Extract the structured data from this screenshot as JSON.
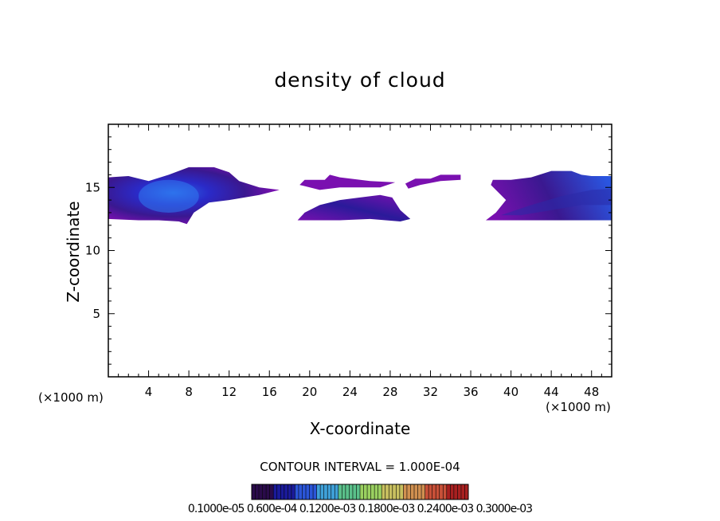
{
  "chart_data": {
    "type": "heatmap",
    "title": "density of cloud",
    "xlabel": "X-coordinate",
    "ylabel": "Z-coordinate",
    "x_unit_left": "(×1000 m)",
    "x_unit_right": "(×1000 m)",
    "xlim": [
      0,
      50
    ],
    "ylim": [
      0,
      20
    ],
    "x_ticks": [
      4,
      8,
      12,
      16,
      20,
      24,
      28,
      32,
      36,
      40,
      44,
      48
    ],
    "y_ticks": [
      5,
      10,
      15
    ],
    "contour_interval_text": "CONTOUR INTERVAL = 1.000E-04",
    "colorbar_labels_text": "0.1000e-05 0.600e-04 0.1200e-03 0.1800e-03 0.2400e-03 0.3000e-03",
    "colorbar_colors": [
      "#2a0b4a",
      "#1a1a9a",
      "#2b55d8",
      "#3fa0d8",
      "#5ac08a",
      "#9ad060",
      "#c8c060",
      "#d09050",
      "#c85038",
      "#a82020"
    ],
    "cloud_regions": [
      {
        "name": "left",
        "x_range": [
          0,
          17
        ],
        "z_range": [
          12,
          16.6
        ],
        "peak_x": 6,
        "peak_z": 14.5
      },
      {
        "name": "middle-upper",
        "x_range": [
          19,
          28.5
        ],
        "z_range": [
          14.8,
          16
        ],
        "peak_x": 23,
        "peak_z": 15.2
      },
      {
        "name": "middle-lower",
        "x_range": [
          19,
          30
        ],
        "z_range": [
          12.3,
          14.2
        ],
        "peak_x": 25,
        "peak_z": 13.3
      },
      {
        "name": "middle-right-streak",
        "x_range": [
          29,
          35
        ],
        "z_range": [
          14.5,
          16
        ],
        "peak_x": 32,
        "peak_z": 15.3
      },
      {
        "name": "right",
        "x_range": [
          37.5,
          50
        ],
        "z_range": [
          12.4,
          16.5
        ],
        "peak_x": 48,
        "peak_z": 14.5
      }
    ]
  }
}
